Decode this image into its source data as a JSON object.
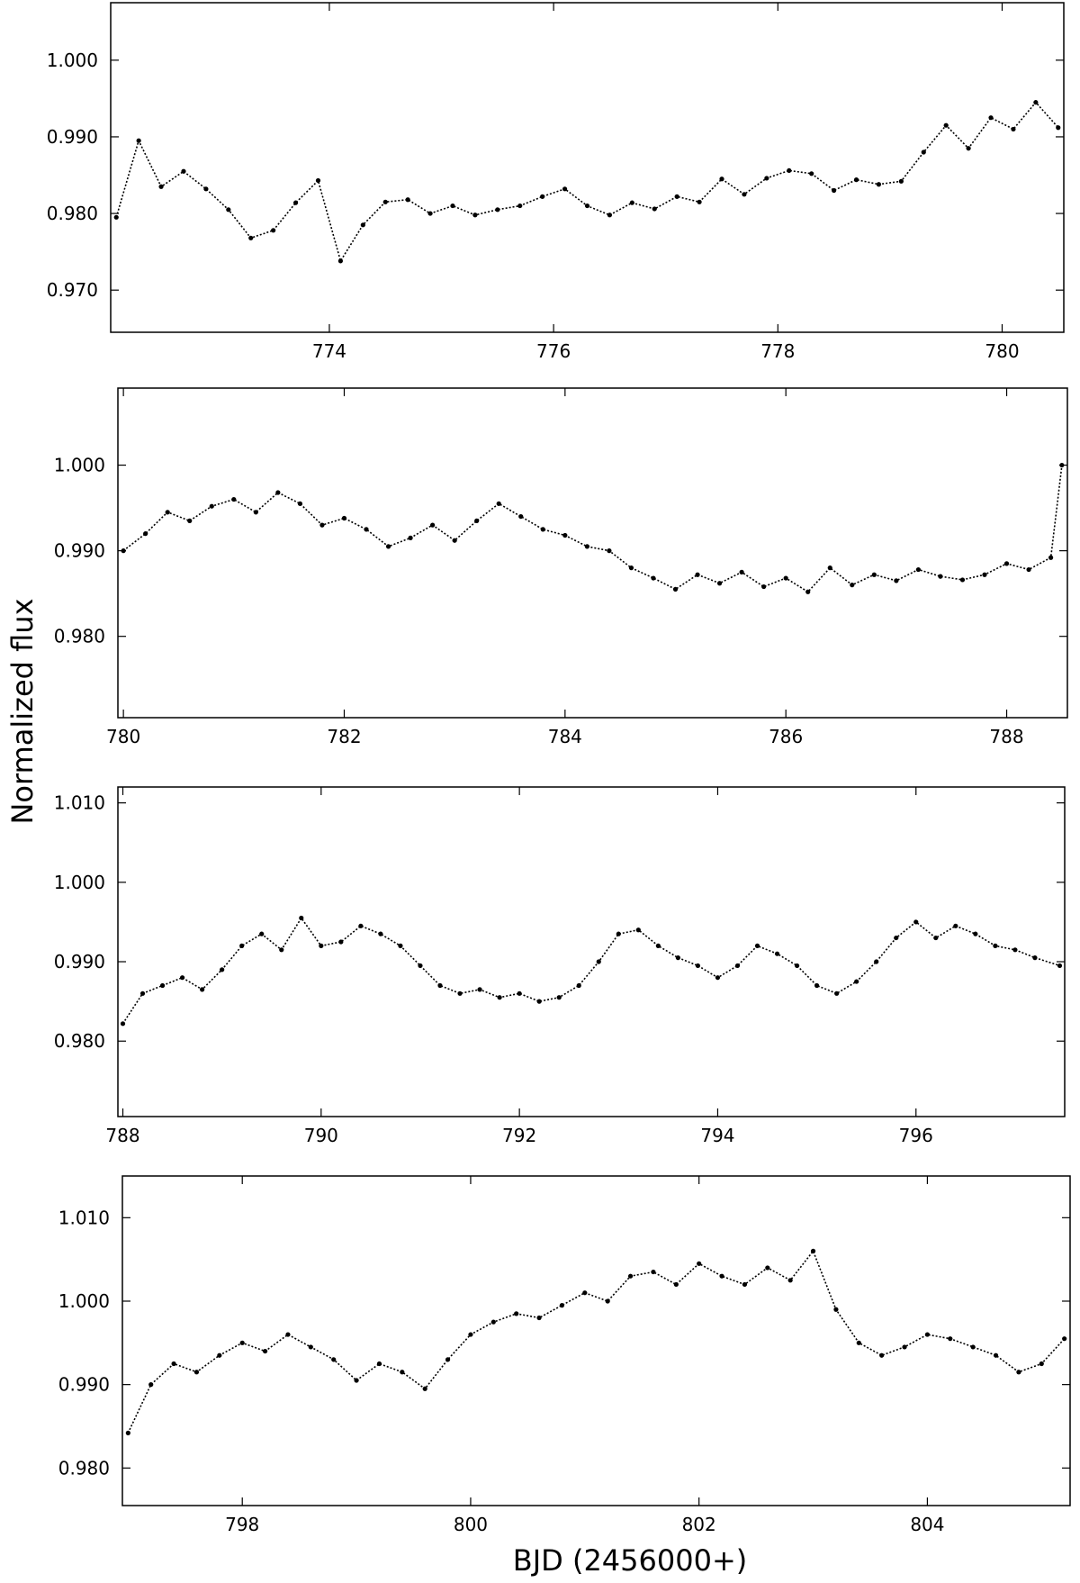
{
  "figure": {
    "ylabel": "Normalized flux",
    "xlabel": "BJD (2456000+)"
  },
  "chart_data": [
    {
      "type": "line",
      "line_style": "dotted",
      "markers": true,
      "color": "#000000",
      "grid": false,
      "xlim": [
        772.05,
        780.55
      ],
      "ylim": [
        0.9645,
        1.0075
      ],
      "xticks": [
        774,
        776,
        778,
        780
      ],
      "xtick_labels": [
        "774",
        "776",
        "778",
        "780"
      ],
      "yticks": [
        0.97,
        0.98,
        0.99,
        1.0
      ],
      "ytick_labels": [
        "0.970",
        "0.980",
        "0.990",
        "1.000"
      ],
      "x": [
        772.1,
        772.3,
        772.5,
        772.7,
        772.9,
        773.1,
        773.3,
        773.5,
        773.7,
        773.9,
        774.1,
        774.3,
        774.5,
        774.7,
        774.9,
        775.1,
        775.3,
        775.5,
        775.7,
        775.9,
        776.1,
        776.3,
        776.5,
        776.7,
        776.9,
        777.1,
        777.3,
        777.5,
        777.7,
        777.9,
        778.1,
        778.3,
        778.5,
        778.7,
        778.9,
        779.1,
        779.3,
        779.5,
        779.7,
        779.9,
        780.1,
        780.3,
        780.5
      ],
      "y": [
        0.9795,
        0.9895,
        0.9835,
        0.9855,
        0.9832,
        0.9805,
        0.9768,
        0.9778,
        0.9814,
        0.9843,
        0.9738,
        0.9785,
        0.9815,
        0.9818,
        0.98,
        0.981,
        0.9798,
        0.9805,
        0.981,
        0.9822,
        0.9832,
        0.981,
        0.9798,
        0.9814,
        0.9806,
        0.9822,
        0.9815,
        0.9845,
        0.9825,
        0.9846,
        0.9856,
        0.9852,
        0.983,
        0.9844,
        0.9838,
        0.9842,
        0.988,
        0.9915,
        0.9885,
        0.9925,
        0.991,
        0.9945,
        0.9912
      ]
    },
    {
      "type": "line",
      "line_style": "dotted",
      "markers": true,
      "color": "#000000",
      "grid": false,
      "xlim": [
        779.95,
        788.55
      ],
      "ylim": [
        0.9705,
        1.009
      ],
      "xticks": [
        780,
        782,
        784,
        786,
        788
      ],
      "xtick_labels": [
        "780",
        "782",
        "784",
        "786",
        "788"
      ],
      "yticks": [
        0.98,
        0.99,
        1.0
      ],
      "ytick_labels": [
        "0.980",
        "0.990",
        "1.000"
      ],
      "x": [
        780.0,
        780.2,
        780.4,
        780.6,
        780.8,
        781.0,
        781.2,
        781.4,
        781.6,
        781.8,
        782.0,
        782.2,
        782.4,
        782.6,
        782.8,
        783.0,
        783.2,
        783.4,
        783.6,
        783.8,
        784.0,
        784.2,
        784.4,
        784.6,
        784.8,
        785.0,
        785.2,
        785.4,
        785.6,
        785.8,
        786.0,
        786.2,
        786.4,
        786.6,
        786.8,
        787.0,
        787.2,
        787.4,
        787.6,
        787.8,
        788.0,
        788.2,
        788.4,
        788.5
      ],
      "y": [
        0.99,
        0.992,
        0.9945,
        0.9935,
        0.9952,
        0.996,
        0.9945,
        0.9968,
        0.9955,
        0.993,
        0.9938,
        0.9925,
        0.9905,
        0.9915,
        0.993,
        0.9912,
        0.9935,
        0.9955,
        0.994,
        0.9925,
        0.9918,
        0.9905,
        0.99,
        0.988,
        0.9868,
        0.9855,
        0.9872,
        0.9862,
        0.9875,
        0.9858,
        0.9868,
        0.9852,
        0.988,
        0.986,
        0.9872,
        0.9865,
        0.9878,
        0.987,
        0.9866,
        0.9872,
        0.9885,
        0.9878,
        0.9892,
        1.0
      ]
    },
    {
      "type": "line",
      "line_style": "dotted",
      "markers": true,
      "color": "#000000",
      "grid": false,
      "xlim": [
        787.95,
        797.5
      ],
      "ylim": [
        0.9705,
        1.012
      ],
      "xticks": [
        788,
        790,
        792,
        794,
        796
      ],
      "xtick_labels": [
        "788",
        "790",
        "792",
        "794",
        "796"
      ],
      "yticks": [
        0.98,
        0.99,
        1.0,
        1.01
      ],
      "ytick_labels": [
        "0.980",
        "0.990",
        "1.000",
        "1.010"
      ],
      "x": [
        788.0,
        788.2,
        788.4,
        788.6,
        788.8,
        789.0,
        789.2,
        789.4,
        789.6,
        789.8,
        790.0,
        790.2,
        790.4,
        790.6,
        790.8,
        791.0,
        791.2,
        791.4,
        791.6,
        791.8,
        792.0,
        792.2,
        792.4,
        792.6,
        792.8,
        793.0,
        793.2,
        793.4,
        793.6,
        793.8,
        794.0,
        794.2,
        794.4,
        794.6,
        794.8,
        795.0,
        795.2,
        795.4,
        795.6,
        795.8,
        796.0,
        796.2,
        796.4,
        796.6,
        796.8,
        797.0,
        797.2,
        797.45
      ],
      "y": [
        0.9822,
        0.986,
        0.987,
        0.988,
        0.9865,
        0.989,
        0.992,
        0.9935,
        0.9915,
        0.9955,
        0.992,
        0.9925,
        0.9945,
        0.9935,
        0.992,
        0.9895,
        0.987,
        0.986,
        0.9865,
        0.9855,
        0.986,
        0.985,
        0.9855,
        0.987,
        0.99,
        0.9935,
        0.994,
        0.992,
        0.9905,
        0.9895,
        0.988,
        0.9895,
        0.992,
        0.991,
        0.9895,
        0.987,
        0.986,
        0.9875,
        0.99,
        0.993,
        0.995,
        0.993,
        0.9945,
        0.9935,
        0.992,
        0.9915,
        0.9905,
        0.9895
      ]
    },
    {
      "type": "line",
      "line_style": "dotted",
      "markers": true,
      "color": "#000000",
      "grid": false,
      "xlim": [
        796.95,
        805.25
      ],
      "ylim": [
        0.9755,
        1.015
      ],
      "xticks": [
        798,
        800,
        802,
        804
      ],
      "xtick_labels": [
        "798",
        "800",
        "802",
        "804"
      ],
      "yticks": [
        0.98,
        0.99,
        1.0,
        1.01
      ],
      "ytick_labels": [
        "0.980",
        "0.990",
        "1.000",
        "1.010"
      ],
      "x": [
        797.0,
        797.2,
        797.4,
        797.6,
        797.8,
        798.0,
        798.2,
        798.4,
        798.6,
        798.8,
        799.0,
        799.2,
        799.4,
        799.6,
        799.8,
        800.0,
        800.2,
        800.4,
        800.6,
        800.8,
        801.0,
        801.2,
        801.4,
        801.6,
        801.8,
        802.0,
        802.2,
        802.4,
        802.6,
        802.8,
        803.0,
        803.2,
        803.4,
        803.6,
        803.8,
        804.0,
        804.2,
        804.4,
        804.6,
        804.8,
        805.0,
        805.2
      ],
      "y": [
        0.9842,
        0.99,
        0.9925,
        0.9915,
        0.9935,
        0.995,
        0.994,
        0.996,
        0.9945,
        0.993,
        0.9905,
        0.9925,
        0.9915,
        0.9895,
        0.993,
        0.996,
        0.9975,
        0.9985,
        0.998,
        0.9995,
        1.001,
        1.0,
        1.003,
        1.0035,
        1.002,
        1.0045,
        1.003,
        1.002,
        1.004,
        1.0025,
        1.006,
        0.999,
        0.995,
        0.9935,
        0.9945,
        0.996,
        0.9955,
        0.9945,
        0.9935,
        0.9915,
        0.9925,
        0.9955
      ]
    }
  ]
}
